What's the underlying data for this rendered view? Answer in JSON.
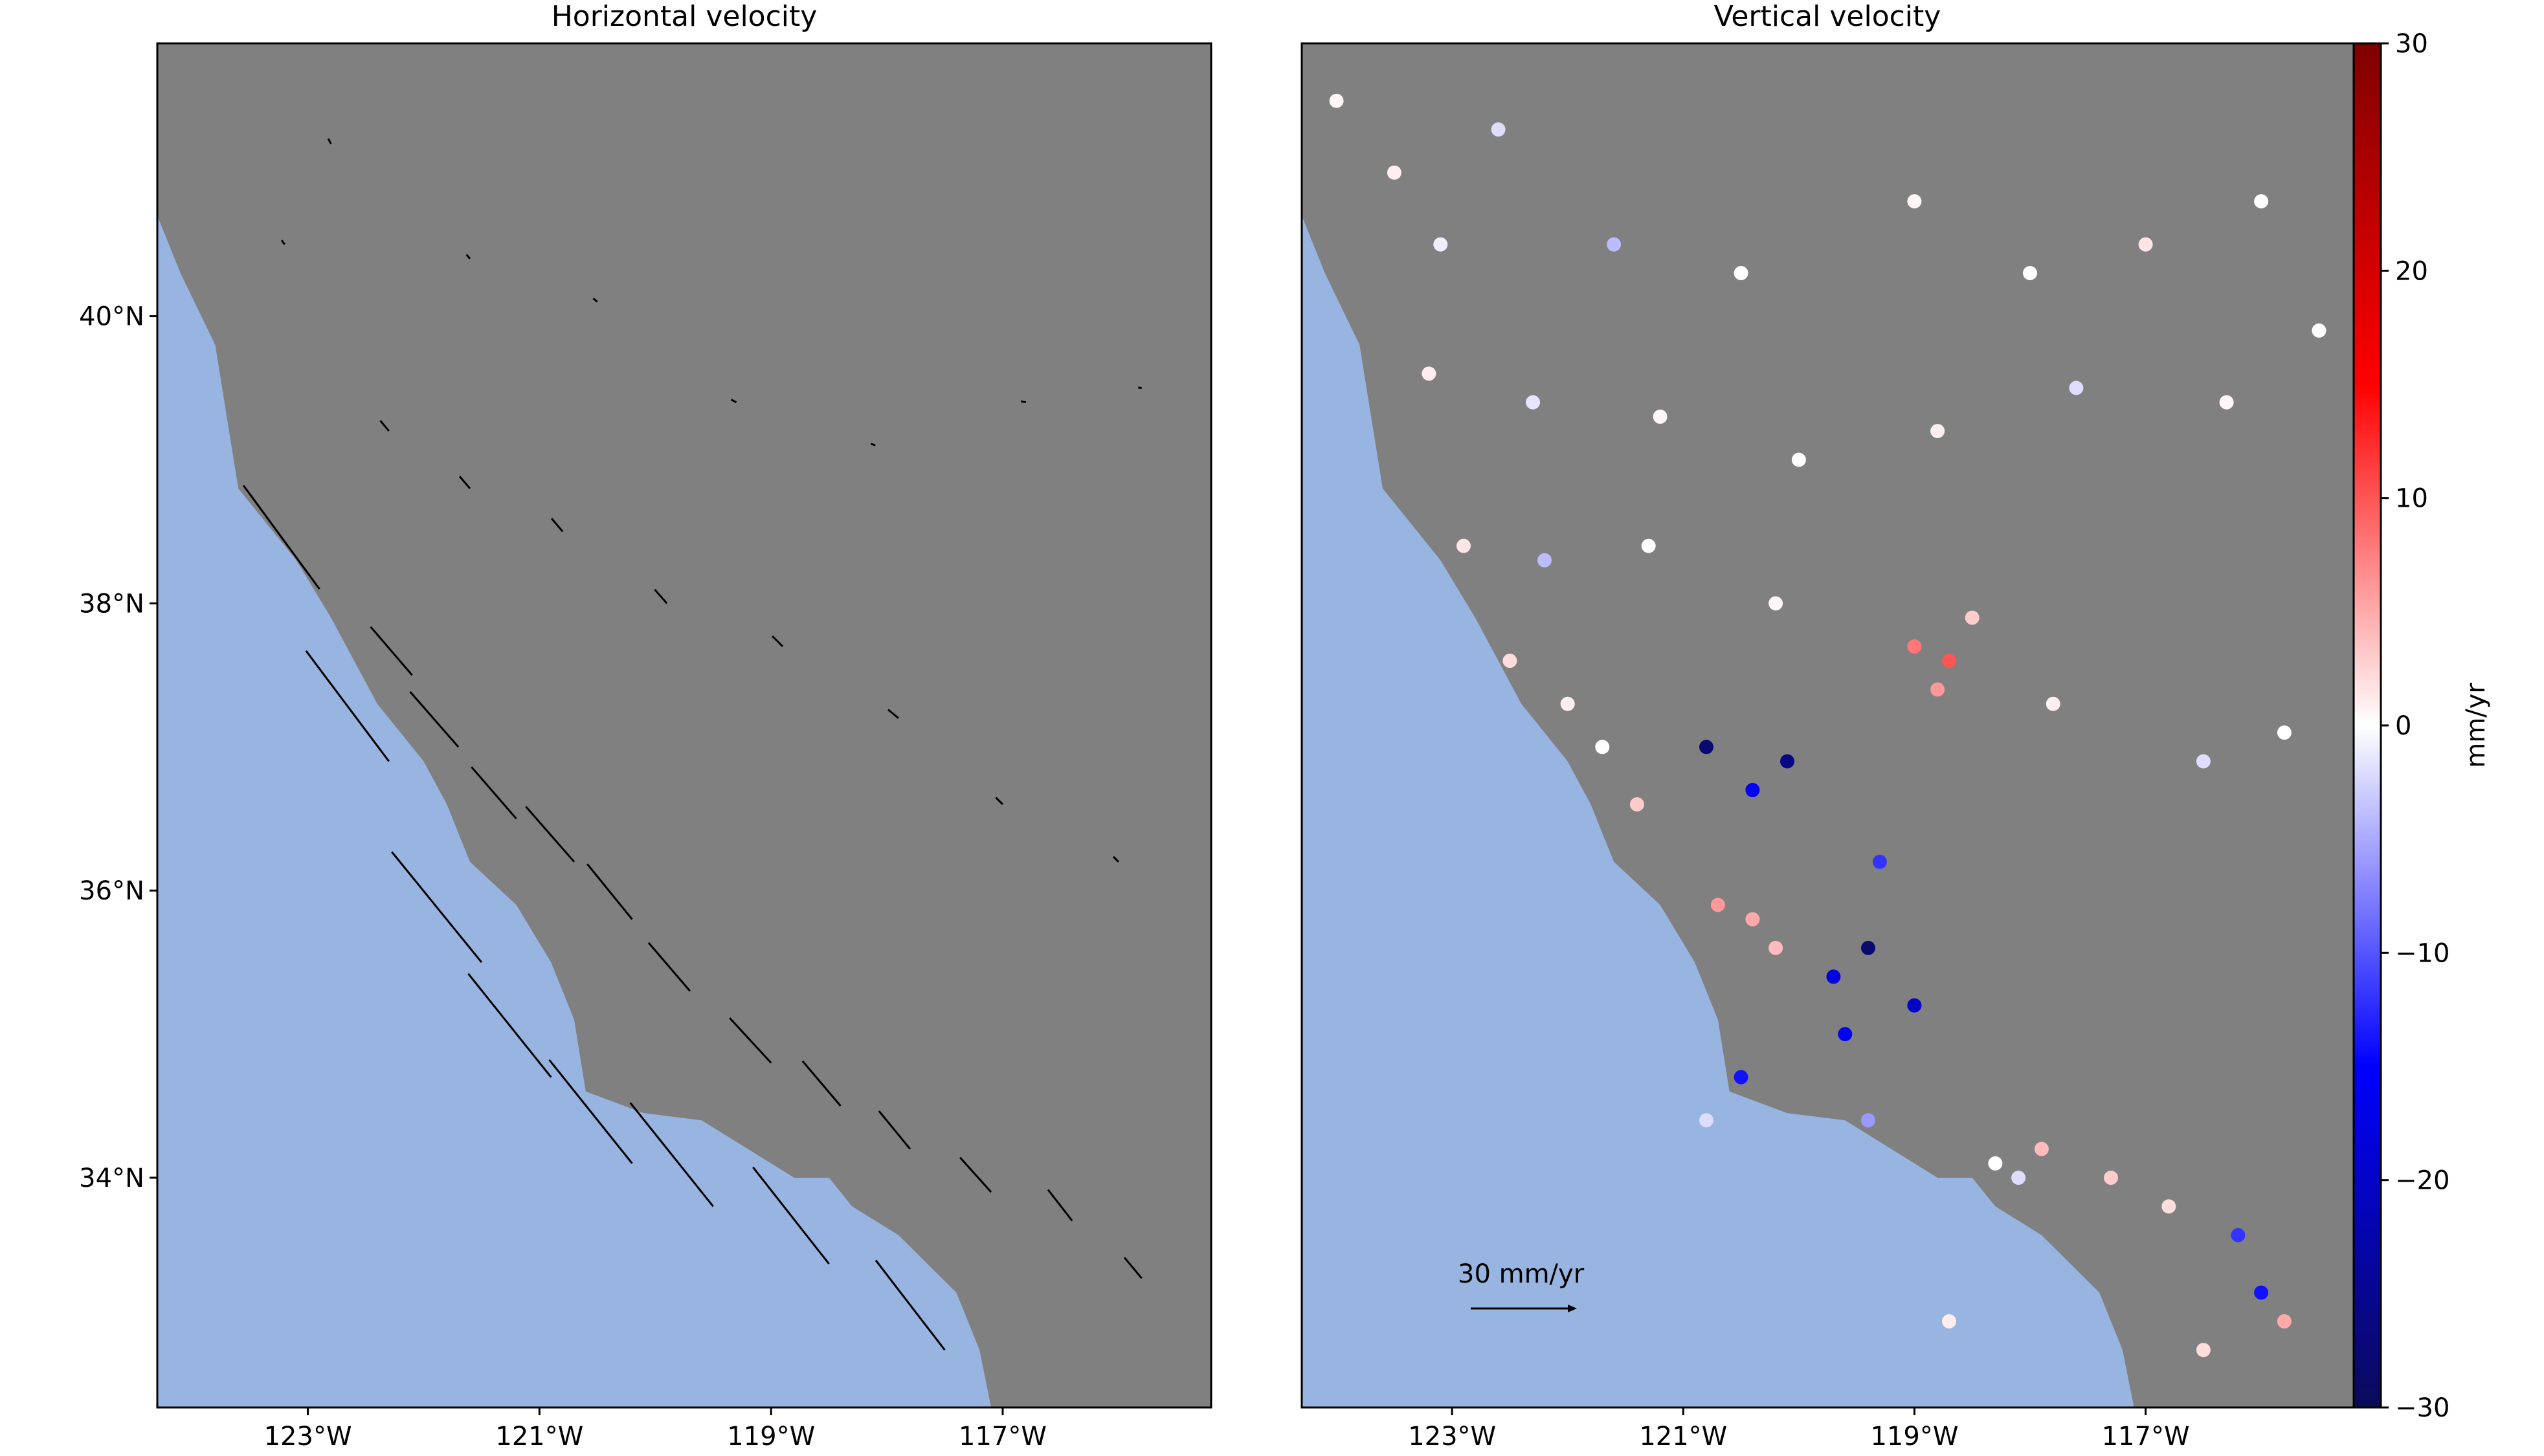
{
  "colors": {
    "land": "#808080",
    "ocean": "#98b4e0",
    "frame": "#000000",
    "arrow": "#000000",
    "colormap": [
      "#0a0a5a",
      "#0000ff",
      "#ffffff",
      "#ff0000",
      "#7f0000"
    ]
  },
  "map": {
    "lon_range": [
      -124.3,
      -115.2
    ],
    "lat_range": [
      32.4,
      41.9
    ]
  },
  "left_panel": {
    "title": "Horizontal velocity",
    "y_ticks": [
      {
        "value": 34,
        "label": "34°N"
      },
      {
        "value": 36,
        "label": "36°N"
      },
      {
        "value": 38,
        "label": "38°N"
      },
      {
        "value": 40,
        "label": "40°N"
      }
    ],
    "x_ticks": [
      {
        "value": -123,
        "label": "123°W"
      },
      {
        "value": -121,
        "label": "121°W"
      },
      {
        "value": -119,
        "label": "119°W"
      },
      {
        "value": -117,
        "label": "117°W"
      }
    ]
  },
  "right_panel": {
    "title": "Vertical velocity",
    "x_ticks": [
      {
        "value": -123,
        "label": "123°W"
      },
      {
        "value": -121,
        "label": "121°W"
      },
      {
        "value": -119,
        "label": "119°W"
      },
      {
        "value": -117,
        "label": "117°W"
      }
    ],
    "scale_label": "30 mm/yr",
    "scale_value": 30
  },
  "colorbar": {
    "label": "mm/yr",
    "range": [
      -30,
      30
    ],
    "ticks": [
      {
        "value": 30,
        "label": "30"
      },
      {
        "value": 20,
        "label": "20"
      },
      {
        "value": 10,
        "label": "10"
      },
      {
        "value": 0,
        "label": "0"
      },
      {
        "value": -10,
        "label": "−10"
      },
      {
        "value": -20,
        "label": "−20"
      },
      {
        "value": -30,
        "label": "−30"
      }
    ]
  },
  "coastline": [
    [
      -124.3,
      40.7
    ],
    [
      -124.1,
      40.3
    ],
    [
      -123.8,
      39.8
    ],
    [
      -123.7,
      39.3
    ],
    [
      -123.6,
      38.8
    ],
    [
      -123.1,
      38.3
    ],
    [
      -122.8,
      37.9
    ],
    [
      -122.6,
      37.6
    ],
    [
      -122.4,
      37.3
    ],
    [
      -122.0,
      36.9
    ],
    [
      -121.8,
      36.6
    ],
    [
      -121.6,
      36.2
    ],
    [
      -121.2,
      35.9
    ],
    [
      -120.9,
      35.5
    ],
    [
      -120.7,
      35.1
    ],
    [
      -120.6,
      34.6
    ],
    [
      -120.1,
      34.45
    ],
    [
      -119.6,
      34.4
    ],
    [
      -119.2,
      34.2
    ],
    [
      -118.8,
      34.0
    ],
    [
      -118.5,
      34.0
    ],
    [
      -118.3,
      33.8
    ],
    [
      -117.9,
      33.6
    ],
    [
      -117.4,
      33.2
    ],
    [
      -117.2,
      32.8
    ],
    [
      -117.1,
      32.4
    ]
  ],
  "vectors": [
    {
      "lon": -123.2,
      "lat": 40.5,
      "ve": -0.9,
      "vn": 1.2
    },
    {
      "lon": -122.8,
      "lat": 41.2,
      "ve": -0.8,
      "vn": 1.5
    },
    {
      "lon": -121.6,
      "lat": 40.4,
      "ve": -1.0,
      "vn": 1.2
    },
    {
      "lon": -120.5,
      "lat": 40.1,
      "ve": -1.2,
      "vn": 1.0
    },
    {
      "lon": -119.3,
      "lat": 39.4,
      "ve": -1.5,
      "vn": 0.8
    },
    {
      "lon": -118.1,
      "lat": 39.1,
      "ve": -1.3,
      "vn": 0.5
    },
    {
      "lon": -116.8,
      "lat": 39.4,
      "ve": -1.4,
      "vn": 0.3
    },
    {
      "lon": -115.8,
      "lat": 39.5,
      "ve": -1.0,
      "vn": 0.1
    },
    {
      "lon": -122.3,
      "lat": 39.2,
      "ve": -2.5,
      "vn": 3.0
    },
    {
      "lon": -121.6,
      "lat": 38.8,
      "ve": -3.0,
      "vn": 3.5
    },
    {
      "lon": -120.8,
      "lat": 38.5,
      "ve": -3.2,
      "vn": 3.8
    },
    {
      "lon": -119.9,
      "lat": 38.0,
      "ve": -3.5,
      "vn": 4.0
    },
    {
      "lon": -118.9,
      "lat": 37.7,
      "ve": -3.0,
      "vn": 3.0
    },
    {
      "lon": -117.9,
      "lat": 37.2,
      "ve": -3.0,
      "vn": 2.5
    },
    {
      "lon": -117.0,
      "lat": 36.6,
      "ve": -2.0,
      "vn": 2.0
    },
    {
      "lon": -116.0,
      "lat": 36.2,
      "ve": -1.5,
      "vn": 1.5
    },
    {
      "lon": -122.1,
      "lat": 37.5,
      "ve": -12.0,
      "vn": 14.0
    },
    {
      "lon": -121.7,
      "lat": 37.0,
      "ve": -14.0,
      "vn": 16.0
    },
    {
      "lon": -121.2,
      "lat": 36.5,
      "ve": -13.0,
      "vn": 15.0
    },
    {
      "lon": -120.7,
      "lat": 36.2,
      "ve": -14.0,
      "vn": 16.0
    },
    {
      "lon": -120.2,
      "lat": 35.8,
      "ve": -13.0,
      "vn": 16.0
    },
    {
      "lon": -119.7,
      "lat": 35.3,
      "ve": -12.0,
      "vn": 14.0
    },
    {
      "lon": -119.0,
      "lat": 34.8,
      "ve": -12.0,
      "vn": 13.0
    },
    {
      "lon": -118.4,
      "lat": 34.5,
      "ve": -11.0,
      "vn": 13.0
    },
    {
      "lon": -117.8,
      "lat": 34.2,
      "ve": -9.0,
      "vn": 11.0
    },
    {
      "lon": -117.1,
      "lat": 33.9,
      "ve": -9.0,
      "vn": 10.0
    },
    {
      "lon": -116.4,
      "lat": 33.7,
      "ve": -7.0,
      "vn": 9.0
    },
    {
      "lon": -115.8,
      "lat": 33.3,
      "ve": -5.0,
      "vn": 6.0
    },
    {
      "lon": -122.9,
      "lat": 38.1,
      "ve": -22.0,
      "vn": 30.0
    },
    {
      "lon": -122.3,
      "lat": 36.9,
      "ve": -24.0,
      "vn": 32.0
    },
    {
      "lon": -121.5,
      "lat": 35.5,
      "ve": -26.0,
      "vn": 32.0
    },
    {
      "lon": -120.9,
      "lat": 34.7,
      "ve": -24.0,
      "vn": 30.0
    },
    {
      "lon": -120.2,
      "lat": 34.1,
      "ve": -24.0,
      "vn": 30.0
    },
    {
      "lon": -119.5,
      "lat": 33.8,
      "ve": -24.0,
      "vn": 30.0
    },
    {
      "lon": -118.5,
      "lat": 33.4,
      "ve": -22.0,
      "vn": 28.0
    },
    {
      "lon": -117.5,
      "lat": 32.8,
      "ve": -20.0,
      "vn": 26.0
    }
  ],
  "stations": [
    {
      "lon": -124.0,
      "lat": 41.5,
      "v": 0.5
    },
    {
      "lon": -123.5,
      "lat": 41.0,
      "v": 1.0
    },
    {
      "lon": -123.1,
      "lat": 40.5,
      "v": -1.0
    },
    {
      "lon": -122.6,
      "lat": 41.3,
      "v": -2.0
    },
    {
      "lon": -121.6,
      "lat": 40.5,
      "v": -4.0
    },
    {
      "lon": -120.5,
      "lat": 40.3,
      "v": 0.0
    },
    {
      "lon": -119.0,
      "lat": 40.8,
      "v": 0.5
    },
    {
      "lon": -118.0,
      "lat": 40.3,
      "v": 0.0
    },
    {
      "lon": -117.0,
      "lat": 40.5,
      "v": 1.5
    },
    {
      "lon": -116.0,
      "lat": 40.8,
      "v": 0.0
    },
    {
      "lon": -123.2,
      "lat": 39.6,
      "v": 1.0
    },
    {
      "lon": -122.3,
      "lat": 39.4,
      "v": -1.5
    },
    {
      "lon": -121.2,
      "lat": 39.3,
      "v": 0.5
    },
    {
      "lon": -120.0,
      "lat": 39.0,
      "v": 0.0
    },
    {
      "lon": -118.8,
      "lat": 39.2,
      "v": 1.0
    },
    {
      "lon": -117.6,
      "lat": 39.5,
      "v": -2.0
    },
    {
      "lon": -116.3,
      "lat": 39.4,
      "v": 0.5
    },
    {
      "lon": -115.5,
      "lat": 39.9,
      "v": 0.0
    },
    {
      "lon": -122.9,
      "lat": 38.4,
      "v": 1.5
    },
    {
      "lon": -122.2,
      "lat": 38.3,
      "v": -4.0
    },
    {
      "lon": -121.3,
      "lat": 38.4,
      "v": 0.0
    },
    {
      "lon": -120.2,
      "lat": 38.0,
      "v": 0.5
    },
    {
      "lon": -119.0,
      "lat": 37.7,
      "v": 8.0
    },
    {
      "lon": -118.7,
      "lat": 37.6,
      "v": 10.0
    },
    {
      "lon": -118.8,
      "lat": 37.4,
      "v": 6.0
    },
    {
      "lon": -118.5,
      "lat": 37.9,
      "v": 3.0
    },
    {
      "lon": -117.8,
      "lat": 37.3,
      "v": 1.0
    },
    {
      "lon": -116.5,
      "lat": 36.9,
      "v": -2.0
    },
    {
      "lon": -115.8,
      "lat": 37.1,
      "v": 0.0
    },
    {
      "lon": -122.5,
      "lat": 37.6,
      "v": 2.0
    },
    {
      "lon": -122.0,
      "lat": 37.3,
      "v": 1.0
    },
    {
      "lon": -121.7,
      "lat": 37.0,
      "v": 0.0
    },
    {
      "lon": -121.4,
      "lat": 36.6,
      "v": 3.0
    },
    {
      "lon": -120.8,
      "lat": 37.0,
      "v": -28.0
    },
    {
      "lon": -120.1,
      "lat": 36.9,
      "v": -26.0
    },
    {
      "lon": -120.4,
      "lat": 36.7,
      "v": -16.0
    },
    {
      "lon": -119.3,
      "lat": 36.2,
      "v": -12.0
    },
    {
      "lon": -120.7,
      "lat": 35.9,
      "v": 6.0
    },
    {
      "lon": -120.4,
      "lat": 35.8,
      "v": 5.0
    },
    {
      "lon": -120.2,
      "lat": 35.6,
      "v": 4.0
    },
    {
      "lon": -119.4,
      "lat": 35.6,
      "v": -28.0
    },
    {
      "lon": -119.7,
      "lat": 35.4,
      "v": -18.0
    },
    {
      "lon": -119.0,
      "lat": 35.2,
      "v": -20.0
    },
    {
      "lon": -119.6,
      "lat": 35.0,
      "v": -16.0
    },
    {
      "lon": -120.5,
      "lat": 34.7,
      "v": -14.0
    },
    {
      "lon": -118.3,
      "lat": 34.1,
      "v": 0.0
    },
    {
      "lon": -118.1,
      "lat": 34.0,
      "v": -2.0
    },
    {
      "lon": -117.9,
      "lat": 34.2,
      "v": 4.0
    },
    {
      "lon": -117.3,
      "lat": 34.0,
      "v": 3.0
    },
    {
      "lon": -116.8,
      "lat": 33.8,
      "v": 2.0
    },
    {
      "lon": -116.2,
      "lat": 33.6,
      "v": -12.0
    },
    {
      "lon": -116.0,
      "lat": 33.2,
      "v": -14.0
    },
    {
      "lon": -115.8,
      "lat": 33.0,
      "v": 5.0
    },
    {
      "lon": -119.4,
      "lat": 34.4,
      "v": -6.0
    },
    {
      "lon": -120.8,
      "lat": 34.4,
      "v": -2.0
    },
    {
      "lon": -118.7,
      "lat": 33.0,
      "v": 1.0
    },
    {
      "lon": -116.5,
      "lat": 32.8,
      "v": 2.0
    }
  ]
}
